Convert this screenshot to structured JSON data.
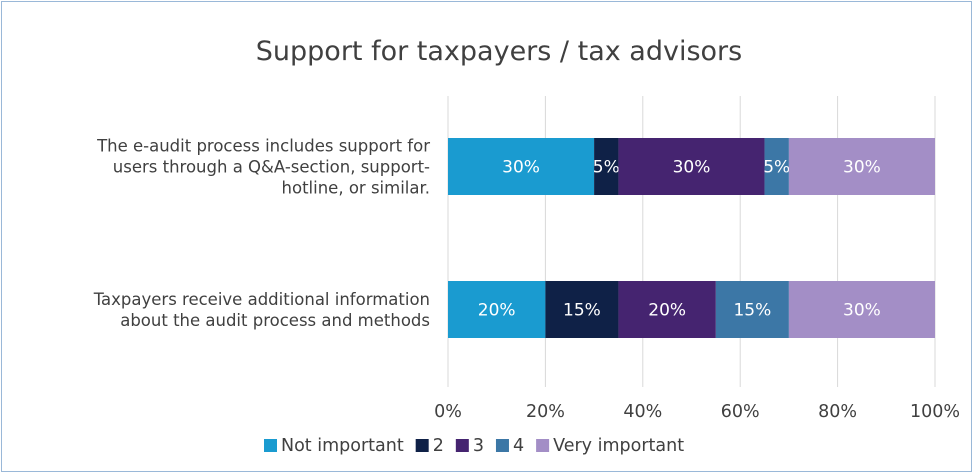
{
  "chart_data": {
    "type": "bar",
    "orientation": "horizontal",
    "stacked": true,
    "title": "Support for taxpayers / tax advisors",
    "categories": [
      "The e-audit process includes support for users through a Q&A-section, support-hotline, or similar.",
      "Taxpayers receive additional information about the audit process and methods"
    ],
    "category_lines": [
      [
        "The e-audit process includes support for",
        "users through a Q&A-section, support-",
        "hotline, or similar."
      ],
      [
        "Taxpayers receive additional information",
        "about the audit process and methods"
      ]
    ],
    "series": [
      {
        "name": "Not important",
        "values": [
          30,
          20
        ],
        "labels": [
          "30%",
          "20%"
        ],
        "color": "#1a9bd0"
      },
      {
        "name": "2",
        "values": [
          5,
          15
        ],
        "labels": [
          "5%",
          "15%"
        ],
        "color": "#0f2147"
      },
      {
        "name": "3",
        "values": [
          30,
          20
        ],
        "labels": [
          "30%",
          "20%"
        ],
        "color": "#452470"
      },
      {
        "name": "4",
        "values": [
          5,
          15
        ],
        "labels": [
          "5%",
          "15%"
        ],
        "color": "#3c77a6"
      },
      {
        "name": "Very important",
        "values": [
          30,
          30
        ],
        "labels": [
          "30%",
          "30%"
        ],
        "color": "#a38ec6"
      }
    ],
    "xlim": [
      0,
      100
    ],
    "xticks": [
      0,
      20,
      40,
      60,
      80,
      100
    ],
    "xtick_labels": [
      "0%",
      "20%",
      "40%",
      "60%",
      "80%",
      "100%"
    ],
    "grid": true,
    "legend_position": "bottom"
  },
  "colors": {
    "grid": "#d9d9d9",
    "text": "#404040",
    "label_on_bar": "#ffffff"
  }
}
